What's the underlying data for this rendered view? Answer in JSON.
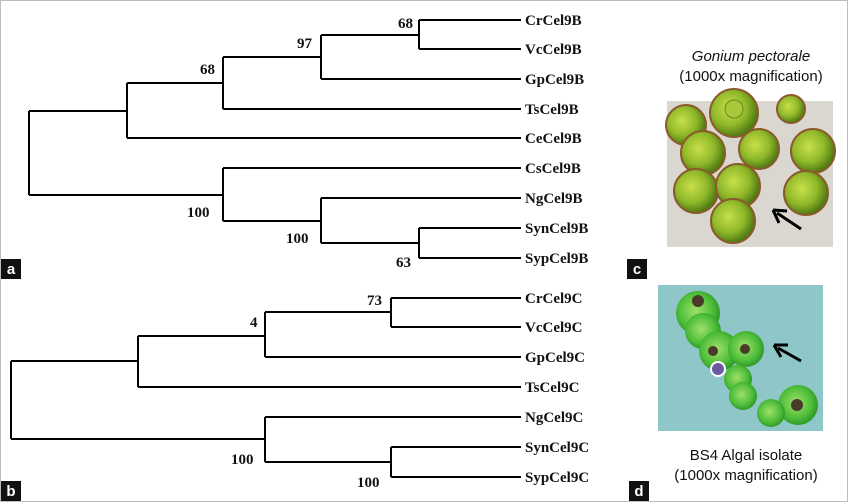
{
  "panels": {
    "a": "a",
    "b": "b",
    "c": "c",
    "d": "d"
  },
  "tree_a": {
    "taxa": [
      "CrCel9B",
      "VcCel9B",
      "GpCel9B",
      "TsCel9B",
      "CeCel9B",
      "CsCel9B",
      "NgCel9B",
      "SynCel9B",
      "SypCel9B"
    ],
    "support": {
      "cr_vc": "68",
      "cr_vc_gp": "97",
      "cr_vc_gp_ts": "68",
      "cs_group": "100",
      "ng_syn_syp": "100",
      "syn_syp": "63"
    }
  },
  "tree_b": {
    "taxa": [
      "CrCel9C",
      "VcCel9C",
      "GpCel9C",
      "TsCel9C",
      "NgCel9C",
      "SynCel9C",
      "SypCel9C"
    ],
    "support": {
      "cr_vc": "73",
      "cr_vc_gp": "4",
      "ng_group": "100",
      "syn_syp": "100"
    }
  },
  "photo_c": {
    "species": "Gonium pectorale",
    "magnification": "(1000x magnification)"
  },
  "photo_d": {
    "name": "BS4 Algal isolate",
    "magnification": "(1000x magnification)"
  }
}
